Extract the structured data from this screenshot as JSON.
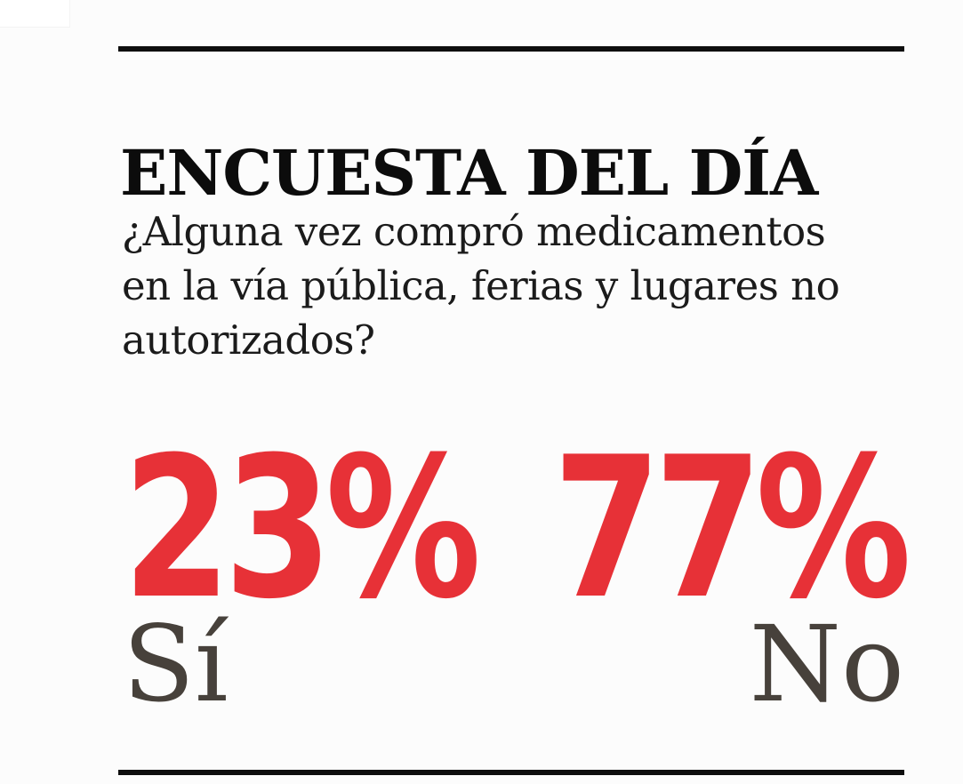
{
  "header": {
    "title": "ENCUESTA DEL DÍA"
  },
  "question": {
    "text": "¿Alguna vez compró medicamentos en la vía pública, ferias y lugares no autorizados?",
    "lines": [
      "¿Alguna vez compró medicamentos",
      "en la vía pública, ferias y lugares no",
      "autorizados?"
    ]
  },
  "results": [
    {
      "value": "23%",
      "label": "Sí"
    },
    {
      "value": "77%",
      "label": "No"
    }
  ],
  "colors": {
    "accent_red": "#e73137",
    "label_gray": "#47413b",
    "ink_black": "#0e0e0e"
  },
  "chart_data": {
    "type": "table",
    "title": "ENCUESTA DEL DÍA",
    "question": "¿Alguna vez compró medicamentos en la vía pública, ferias y lugares no autorizados?",
    "categories": [
      "Sí",
      "No"
    ],
    "values": [
      23,
      77
    ],
    "unit": "%",
    "layout": "two-big-numbers, Sí left-aligned, No right-aligned"
  }
}
